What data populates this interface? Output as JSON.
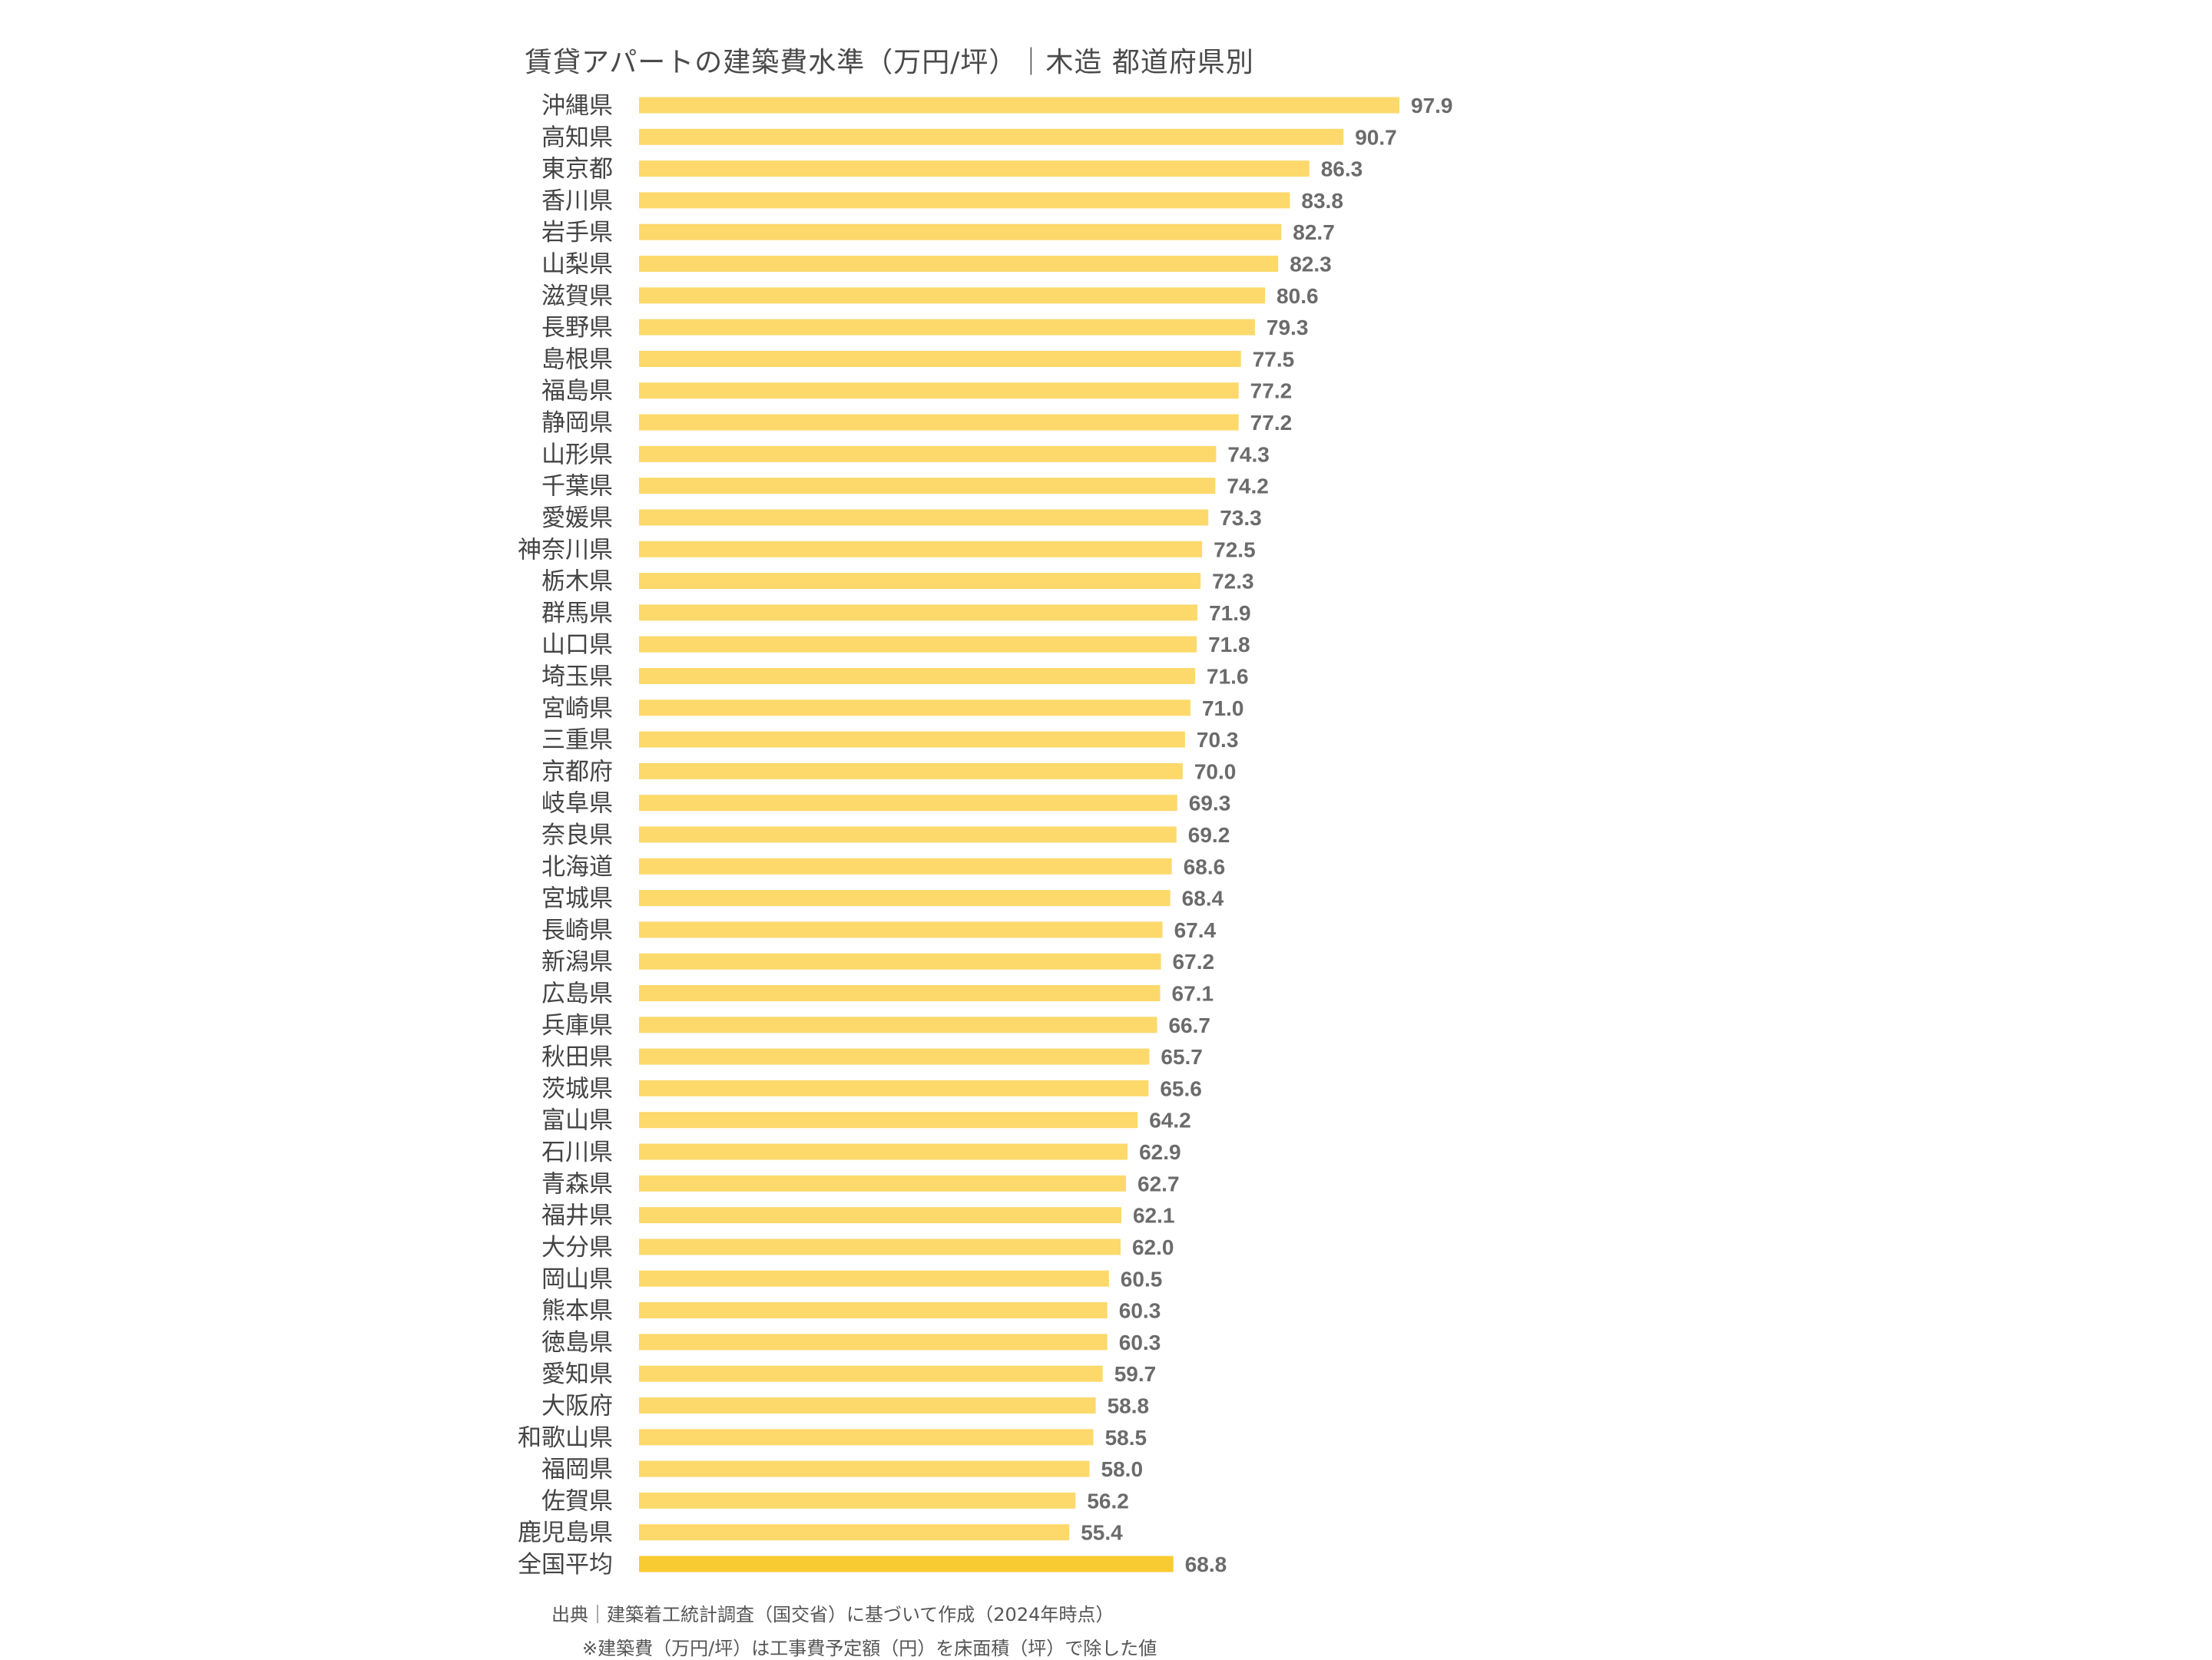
{
  "chart_data": {
    "type": "bar",
    "orientation": "horizontal",
    "title": "賃貸アパートの建築費水準（万円/坪）｜木造 都道府県別",
    "xlabel": "",
    "ylabel": "",
    "xlim": [
      0,
      100
    ],
    "grid": false,
    "colors": {
      "bar": "#FDD96B",
      "highlight": "#F9CB33",
      "value_label": "#6b6b6b",
      "category_label": "#444444"
    },
    "categories": [
      "沖縄県",
      "高知県",
      "東京都",
      "香川県",
      "岩手県",
      "山梨県",
      "滋賀県",
      "長野県",
      "島根県",
      "福島県",
      "静岡県",
      "山形県",
      "千葉県",
      "愛媛県",
      "神奈川県",
      "栃木県",
      "群馬県",
      "山口県",
      "埼玉県",
      "宮崎県",
      "三重県",
      "京都府",
      "岐阜県",
      "奈良県",
      "北海道",
      "宮城県",
      "長崎県",
      "新潟県",
      "広島県",
      "兵庫県",
      "秋田県",
      "茨城県",
      "富山県",
      "石川県",
      "青森県",
      "福井県",
      "大分県",
      "岡山県",
      "熊本県",
      "徳島県",
      "愛知県",
      "大阪府",
      "和歌山県",
      "福岡県",
      "佐賀県",
      "鹿児島県",
      "全国平均"
    ],
    "values": [
      97.9,
      90.7,
      86.3,
      83.8,
      82.7,
      82.3,
      80.6,
      79.3,
      77.5,
      77.2,
      77.2,
      74.3,
      74.2,
      73.3,
      72.5,
      72.3,
      71.9,
      71.8,
      71.6,
      71.0,
      70.3,
      70.0,
      69.3,
      69.2,
      68.6,
      68.4,
      67.4,
      67.2,
      67.1,
      66.7,
      65.7,
      65.6,
      64.2,
      62.9,
      62.7,
      62.1,
      62.0,
      60.5,
      60.3,
      60.3,
      59.7,
      58.8,
      58.5,
      58.0,
      56.2,
      55.4,
      68.8
    ],
    "value_labels": [
      "97.9",
      "90.7",
      "86.3",
      "83.8",
      "82.7",
      "82.3",
      "80.6",
      "79.3",
      "77.5",
      "77.2",
      "77.2",
      "74.3",
      "74.2",
      "73.3",
      "72.5",
      "72.3",
      "71.9",
      "71.8",
      "71.6",
      "71.0",
      "70.3",
      "70.0",
      "69.3",
      "69.2",
      "68.6",
      "68.4",
      "67.4",
      "67.2",
      "67.1",
      "66.7",
      "65.7",
      "65.6",
      "64.2",
      "62.9",
      "62.7",
      "62.1",
      "62.0",
      "60.5",
      "60.3",
      "60.3",
      "59.7",
      "58.8",
      "58.5",
      "58.0",
      "56.2",
      "55.4",
      "68.8"
    ],
    "highlight_category": "全国平均"
  },
  "notes": {
    "source": "出典｜建築着工統計調査（国交省）に基づいて作成（2024年時点）",
    "footnote": "※建築費（万円/坪）は工事費予定額（円）を床面積（坪）で除した値"
  }
}
